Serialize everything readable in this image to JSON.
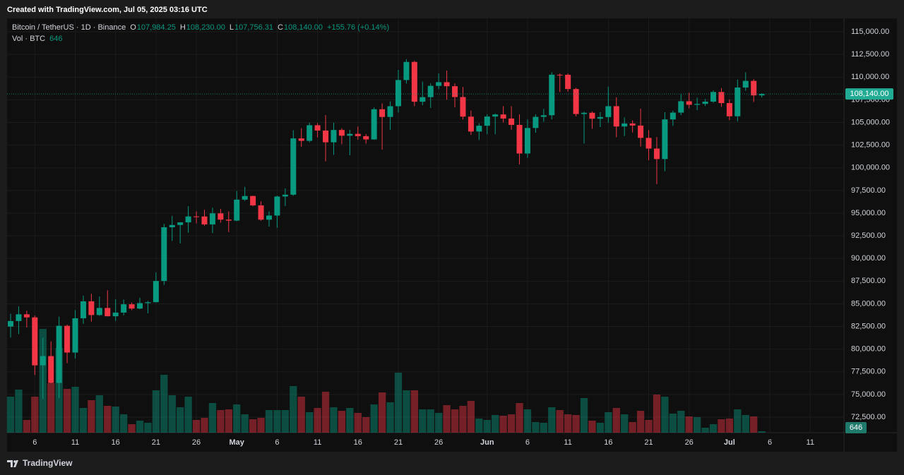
{
  "header": "Created with TradingView.com, Jul 05, 2025 03:16 UTC",
  "footer": "TradingView",
  "chart_data": {
    "type": "candlestick",
    "legend": {
      "symbol": "Bitcoin / TetherUS · 1D · Binance",
      "fields": [
        {
          "key": "O",
          "value": "107,984.25"
        },
        {
          "key": "H",
          "value": "108,230.00"
        },
        {
          "key": "L",
          "value": "107,756.31"
        },
        {
          "key": "C",
          "value": "108,140.00"
        }
      ],
      "change": "+155.76 (+0.14%)"
    },
    "up_color": "#089981",
    "down_color": "#f23645",
    "x": [
      "2025-04-03",
      "2025-04-04",
      "2025-04-05",
      "2025-04-06",
      "2025-04-07",
      "2025-04-08",
      "2025-04-09",
      "2025-04-10",
      "2025-04-11",
      "2025-04-12",
      "2025-04-13",
      "2025-04-14",
      "2025-04-15",
      "2025-04-16",
      "2025-04-17",
      "2025-04-18",
      "2025-04-19",
      "2025-04-20",
      "2025-04-21",
      "2025-04-22",
      "2025-04-23",
      "2025-04-24",
      "2025-04-25",
      "2025-04-26",
      "2025-04-27",
      "2025-04-28",
      "2025-04-29",
      "2025-04-30",
      "2025-05-01",
      "2025-05-02",
      "2025-05-03",
      "2025-05-04",
      "2025-05-05",
      "2025-05-06",
      "2025-05-07",
      "2025-05-08",
      "2025-05-09",
      "2025-05-10",
      "2025-05-11",
      "2025-05-12",
      "2025-05-13",
      "2025-05-14",
      "2025-05-15",
      "2025-05-16",
      "2025-05-17",
      "2025-05-18",
      "2025-05-19",
      "2025-05-20",
      "2025-05-21",
      "2025-05-22",
      "2025-05-23",
      "2025-05-24",
      "2025-05-25",
      "2025-05-26",
      "2025-05-27",
      "2025-05-28",
      "2025-05-29",
      "2025-05-30",
      "2025-05-31",
      "2025-06-01",
      "2025-06-02",
      "2025-06-03",
      "2025-06-04",
      "2025-06-05",
      "2025-06-06",
      "2025-06-07",
      "2025-06-08",
      "2025-06-09",
      "2025-06-10",
      "2025-06-11",
      "2025-06-12",
      "2025-06-13",
      "2025-06-14",
      "2025-06-15",
      "2025-06-16",
      "2025-06-17",
      "2025-06-18",
      "2025-06-19",
      "2025-06-20",
      "2025-06-21",
      "2025-06-22",
      "2025-06-23",
      "2025-06-24",
      "2025-06-25",
      "2025-06-26",
      "2025-06-27",
      "2025-06-28",
      "2025-06-29",
      "2025-06-30",
      "2025-07-01",
      "2025-07-02",
      "2025-07-03",
      "2025-07-04",
      "2025-07-05"
    ],
    "open": [
      82487,
      83100,
      83843,
      83504,
      78214,
      79235,
      76272,
      82573,
      79626,
      83404,
      85276,
      83760,
      84542,
      83629,
      84030,
      84947,
      84474,
      85077,
      85179,
      87516,
      93442,
      93691,
      93980,
      94638,
      94631,
      93754,
      94978,
      94284,
      94172,
      96489,
      96887,
      95856,
      94277,
      94733,
      96834,
      97032,
      103241,
      102971,
      104696,
      104106,
      102812,
      104169,
      103539,
      103744,
      103489,
      103126,
      106454,
      105606,
      106791,
      109678,
      111673,
      107287,
      107791,
      109035,
      109440,
      108995,
      107802,
      105641,
      103998,
      104638,
      105652,
      105881,
      105432,
      104731,
      101575,
      104390,
      105615,
      105793,
      110264,
      110257,
      108686,
      105929,
      106066,
      105414,
      105594,
      106794,
      104551,
      104886,
      104658,
      103297,
      102120,
      100963,
      105333,
      106083,
      107340,
      106947,
      107047,
      107296,
      108356,
      107135,
      105681,
      108850,
      109584,
      107984.25
    ],
    "high": [
      83909,
      84720,
      84234,
      83704,
      81243,
      80867,
      83588,
      82700,
      84300,
      85905,
      86100,
      85799,
      86496,
      85500,
      85470,
      85132,
      85677,
      85320,
      88460,
      93817,
      94696,
      94000,
      95758,
      95199,
      95369,
      95600,
      95469,
      95200,
      97437,
      97895,
      96935,
      96304,
      95199,
      96920,
      97732,
      104145,
      104361,
      104984,
      104937,
      105819,
      104976,
      104361,
      104192,
      104550,
      103716,
      106660,
      107108,
      107320,
      110797,
      111980,
      111800,
      109500,
      109300,
      110422,
      110718,
      109300,
      108910,
      106325,
      104900,
      105900,
      105980,
      106800,
      106795,
      105900,
      105333,
      105900,
      106488,
      110530,
      110400,
      110400,
      108813,
      106179,
      106210,
      106128,
      108952,
      107771,
      105550,
      105226,
      106524,
      104150,
      103400,
      106128,
      106290,
      108135,
      108272,
      107735,
      107577,
      108528,
      108789,
      107540,
      109730,
      110529,
      109767,
      108230
    ],
    "low": [
      81282,
      81659,
      82373,
      77153,
      74508,
      76239,
      74620,
      78456,
      78969,
      82792,
      83034,
      83678,
      83600,
      83111,
      83736,
      84303,
      84405,
      83949,
      85144,
      87084,
      91935,
      91660,
      92855,
      93870,
      93603,
      92800,
      93951,
      92910,
      94111,
      96350,
      95753,
      94151,
      93514,
      93377,
      95784,
      96913,
      102316,
      102818,
      103346,
      100718,
      101429,
      102602,
      101383,
      103100,
      102659,
      103105,
      102000,
      104172,
      106100,
      109285,
      106800,
      106900,
      106600,
      108670,
      107509,
      106681,
      105330,
      103621,
      103068,
      103700,
      103700,
      105000,
      104191,
      100372,
      101095,
      103871,
      105068,
      105337,
      108360,
      108400,
      105671,
      102664,
      104300,
      104494,
      104979,
      103371,
      103500,
      103900,
      102345,
      100837,
      98200,
      99613,
      104622,
      105808,
      106562,
      106356,
      106811,
      107172,
      106733,
      105250,
      105100,
      108500,
      107250,
      107756.31
    ],
    "close": [
      83100,
      83843,
      83504,
      78214,
      79235,
      76272,
      82573,
      79626,
      83404,
      85276,
      83760,
      84542,
      83629,
      84030,
      84947,
      84474,
      85077,
      85179,
      87516,
      93442,
      93691,
      93980,
      94638,
      94631,
      93754,
      94978,
      94284,
      94172,
      96489,
      96887,
      95856,
      94277,
      94733,
      96834,
      97032,
      103241,
      102971,
      104696,
      104106,
      102812,
      104169,
      103539,
      103744,
      103489,
      103126,
      106454,
      105606,
      106791,
      109678,
      111673,
      107287,
      107791,
      109035,
      109440,
      108995,
      107802,
      105641,
      103998,
      104638,
      105652,
      105881,
      105432,
      104731,
      101575,
      104390,
      105615,
      105793,
      110264,
      110257,
      108686,
      105929,
      106066,
      105414,
      105594,
      106794,
      104551,
      104886,
      104658,
      103297,
      102120,
      100963,
      105333,
      106083,
      107340,
      106947,
      107047,
      107296,
      108356,
      107135,
      105681,
      108850,
      109584,
      107984,
      108140
    ],
    "volume": {
      "name": "Vol · BTC",
      "values": [
        16320,
        19520,
        5760,
        16320,
        47040,
        22400,
        38400,
        19840,
        20800,
        11200,
        14720,
        16960,
        12160,
        11840,
        8320,
        3840,
        5440,
        4480,
        19200,
        26240,
        16960,
        11520,
        16320,
        5760,
        6720,
        13440,
        10240,
        10560,
        12800,
        8320,
        6080,
        6720,
        10240,
        10240,
        10240,
        21120,
        16320,
        9280,
        11200,
        18560,
        11520,
        9920,
        11200,
        8960,
        7040,
        12800,
        18240,
        13760,
        27200,
        19200,
        19200,
        10560,
        10560,
        8960,
        12480,
        10560,
        12160,
        14400,
        6400,
        5760,
        8000,
        7680,
        8320,
        13440,
        10560,
        4800,
        4480,
        11520,
        10240,
        8320,
        8000,
        15680,
        5440,
        4480,
        9280,
        11200,
        8320,
        4800,
        9920,
        5760,
        17280,
        16320,
        8640,
        9920,
        7360,
        7040,
        2240,
        3840,
        6080,
        6400,
        10560,
        8000,
        7360,
        646
      ]
    },
    "last_price": {
      "value": 108140,
      "label": "108,140.00"
    },
    "xlim": [
      "2025-04-03",
      "2025-07-15"
    ],
    "xticks": [
      {
        "value": "2025-04-06",
        "label": "6"
      },
      {
        "value": "2025-04-11",
        "label": "11"
      },
      {
        "value": "2025-04-16",
        "label": "16"
      },
      {
        "value": "2025-04-21",
        "label": "21"
      },
      {
        "value": "2025-04-26",
        "label": "26"
      },
      {
        "value": "2025-05-01",
        "label": "May"
      },
      {
        "value": "2025-05-06",
        "label": "6"
      },
      {
        "value": "2025-05-11",
        "label": "11"
      },
      {
        "value": "2025-05-16",
        "label": "16"
      },
      {
        "value": "2025-05-21",
        "label": "21"
      },
      {
        "value": "2025-05-26",
        "label": "26"
      },
      {
        "value": "2025-06-01",
        "label": "Jun"
      },
      {
        "value": "2025-06-06",
        "label": "6"
      },
      {
        "value": "2025-06-11",
        "label": "11"
      },
      {
        "value": "2025-06-16",
        "label": "16"
      },
      {
        "value": "2025-06-21",
        "label": "21"
      },
      {
        "value": "2025-06-26",
        "label": "26"
      },
      {
        "value": "2025-07-01",
        "label": "Jul"
      },
      {
        "value": "2025-07-06",
        "label": "6"
      },
      {
        "value": "2025-07-11",
        "label": "11"
      }
    ],
    "ylim": [
      70790,
      116480
    ],
    "yticks": [
      {
        "value": 72500,
        "label": "72,500.00"
      },
      {
        "value": 75000,
        "label": "75,000.00"
      },
      {
        "value": 77500,
        "label": "77,500.00"
      },
      {
        "value": 80000,
        "label": "80,000.00"
      },
      {
        "value": 82500,
        "label": "82,500.00"
      },
      {
        "value": 85000,
        "label": "85,000.00"
      },
      {
        "value": 87500,
        "label": "87,500.00"
      },
      {
        "value": 90000,
        "label": "90,000.00"
      },
      {
        "value": 92500,
        "label": "92,500.00"
      },
      {
        "value": 95000,
        "label": "95,000.00"
      },
      {
        "value": 97500,
        "label": "97,500.00"
      },
      {
        "value": 100000,
        "label": "100,000.00"
      },
      {
        "value": 102500,
        "label": "102,500.00"
      },
      {
        "value": 105000,
        "label": "105,000.00"
      },
      {
        "value": 107500,
        "label": "107,500.00"
      },
      {
        "value": 110000,
        "label": "110,000.00"
      },
      {
        "value": 112500,
        "label": "112,500.00"
      },
      {
        "value": 115000,
        "label": "115,000.00"
      }
    ],
    "grid": true
  }
}
